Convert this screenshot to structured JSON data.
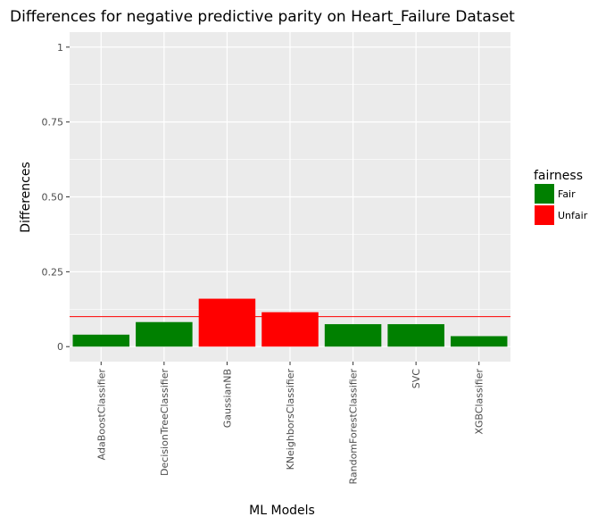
{
  "chart_data": {
    "type": "bar",
    "title": "Differences for negative predictive parity on Heart_Failure Dataset",
    "xlabel": "ML Models",
    "ylabel": "Differences",
    "categories": [
      "AdaBoostClassifier",
      "DecisionTreeClassifier",
      "GaussianNB",
      "KNeighborsClassifier",
      "RandomForestClassifier",
      "SVC",
      "XGBClassifier"
    ],
    "values": [
      0.04,
      0.082,
      0.16,
      0.115,
      0.075,
      0.075,
      0.035
    ],
    "fairness": [
      "Fair",
      "Fair",
      "Unfair",
      "Unfair",
      "Fair",
      "Fair",
      "Fair"
    ],
    "ylim": [
      -0.05,
      1.05
    ],
    "yticks": [
      0,
      0.25,
      0.5,
      0.75,
      1
    ],
    "ytick_labels": [
      "0",
      "0.25",
      "0.50",
      "0.75",
      "1"
    ],
    "threshold": 0.1,
    "threshold_color": "#ff0000",
    "grid": true,
    "legend": {
      "title": "fairness",
      "position": "right",
      "items": [
        {
          "label": "Fair",
          "color": "#008000"
        },
        {
          "label": "Unfair",
          "color": "#ff0000"
        }
      ]
    }
  }
}
